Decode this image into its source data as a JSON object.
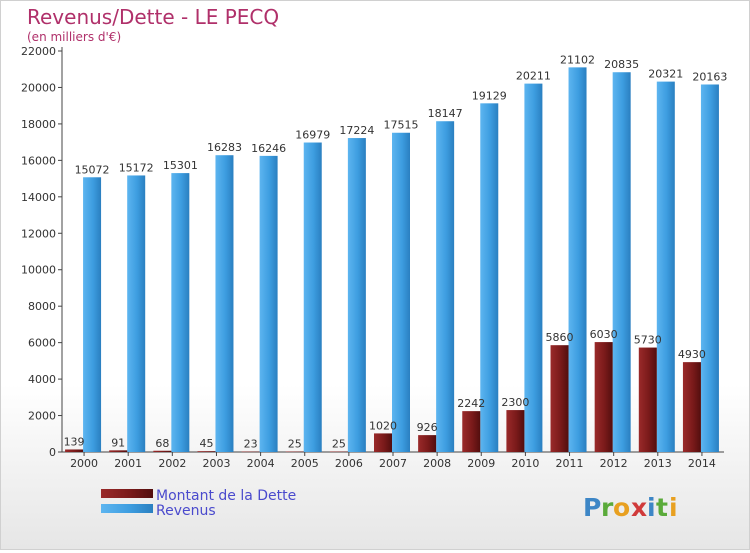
{
  "chart_data": {
    "type": "bar",
    "title": "Revenus/Dette - LE PECQ",
    "subtitle": "(en milliers d'€)",
    "categories": [
      "2000",
      "2001",
      "2002",
      "2003",
      "2004",
      "2005",
      "2006",
      "2007",
      "2008",
      "2009",
      "2010",
      "2011",
      "2012",
      "2013",
      "2014"
    ],
    "series": [
      {
        "name": "Montant de la Dette",
        "color": "#7a1a1a",
        "values": [
          139,
          91,
          68,
          45,
          23,
          25,
          25,
          1020,
          926,
          2242,
          2300,
          5860,
          6030,
          5730,
          4930
        ],
        "labels": [
          "139",
          "91",
          "68",
          "45",
          "23",
          "25",
          "25",
          "1020",
          "926",
          "2242",
          "2300",
          "5860",
          "6030",
          "5730",
          "4930"
        ]
      },
      {
        "name": "Revenus",
        "color": "#3d9de0",
        "values": [
          15072,
          15172,
          15301,
          16283,
          16246,
          16979,
          17224,
          17515,
          18147,
          19129,
          20211,
          21102,
          20835,
          20321,
          20163
        ],
        "labels": [
          "15072",
          "15172",
          "15301",
          "16283",
          "16246",
          "16979",
          "17224",
          "17515",
          "18147",
          "19129",
          "20211",
          "21102",
          "20835",
          "20321",
          "20163"
        ]
      }
    ],
    "ylim": [
      0,
      22000
    ],
    "yticks": [
      0,
      2000,
      4000,
      6000,
      8000,
      10000,
      12000,
      14000,
      16000,
      18000,
      20000,
      22000
    ],
    "grid": false,
    "legend": "bottom-left"
  },
  "logo": {
    "text": "Proxiti"
  }
}
